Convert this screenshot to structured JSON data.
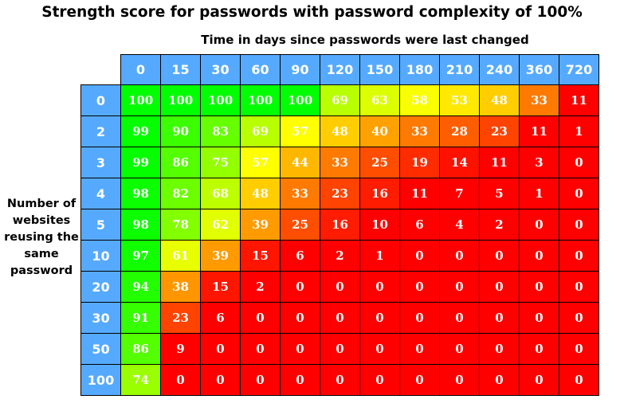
{
  "chart_data": {
    "type": "heatmap",
    "title": "Strength score for passwords with password complexity of 100%",
    "xlabel": "Time in days since passwords were last changed",
    "ylabel": "Number of websites reusing the same password",
    "x": [
      "0",
      "15",
      "30",
      "60",
      "90",
      "120",
      "150",
      "180",
      "210",
      "240",
      "360",
      "720"
    ],
    "y": [
      "0",
      "2",
      "3",
      "4",
      "5",
      "10",
      "20",
      "30",
      "50",
      "100"
    ],
    "values": [
      [
        100,
        100,
        100,
        100,
        100,
        69,
        63,
        58,
        53,
        48,
        33,
        11
      ],
      [
        99,
        90,
        83,
        69,
        57,
        48,
        40,
        33,
        28,
        23,
        11,
        1
      ],
      [
        99,
        86,
        75,
        57,
        44,
        33,
        25,
        19,
        14,
        11,
        3,
        0
      ],
      [
        98,
        82,
        68,
        48,
        33,
        23,
        16,
        11,
        7,
        5,
        1,
        0
      ],
      [
        98,
        78,
        62,
        39,
        25,
        16,
        10,
        6,
        4,
        2,
        0,
        0
      ],
      [
        97,
        61,
        39,
        15,
        6,
        2,
        1,
        0,
        0,
        0,
        0,
        0
      ],
      [
        94,
        38,
        15,
        2,
        0,
        0,
        0,
        0,
        0,
        0,
        0,
        0
      ],
      [
        91,
        23,
        6,
        0,
        0,
        0,
        0,
        0,
        0,
        0,
        0,
        0
      ],
      [
        86,
        9,
        0,
        0,
        0,
        0,
        0,
        0,
        0,
        0,
        0,
        0
      ],
      [
        74,
        0,
        0,
        0,
        0,
        0,
        0,
        0,
        0,
        0,
        0,
        0
      ]
    ],
    "colorscale": {
      "high": "#00ff00",
      "mid": "#ffff00",
      "low": "#ff0000"
    },
    "header_color": "#55aaff"
  }
}
